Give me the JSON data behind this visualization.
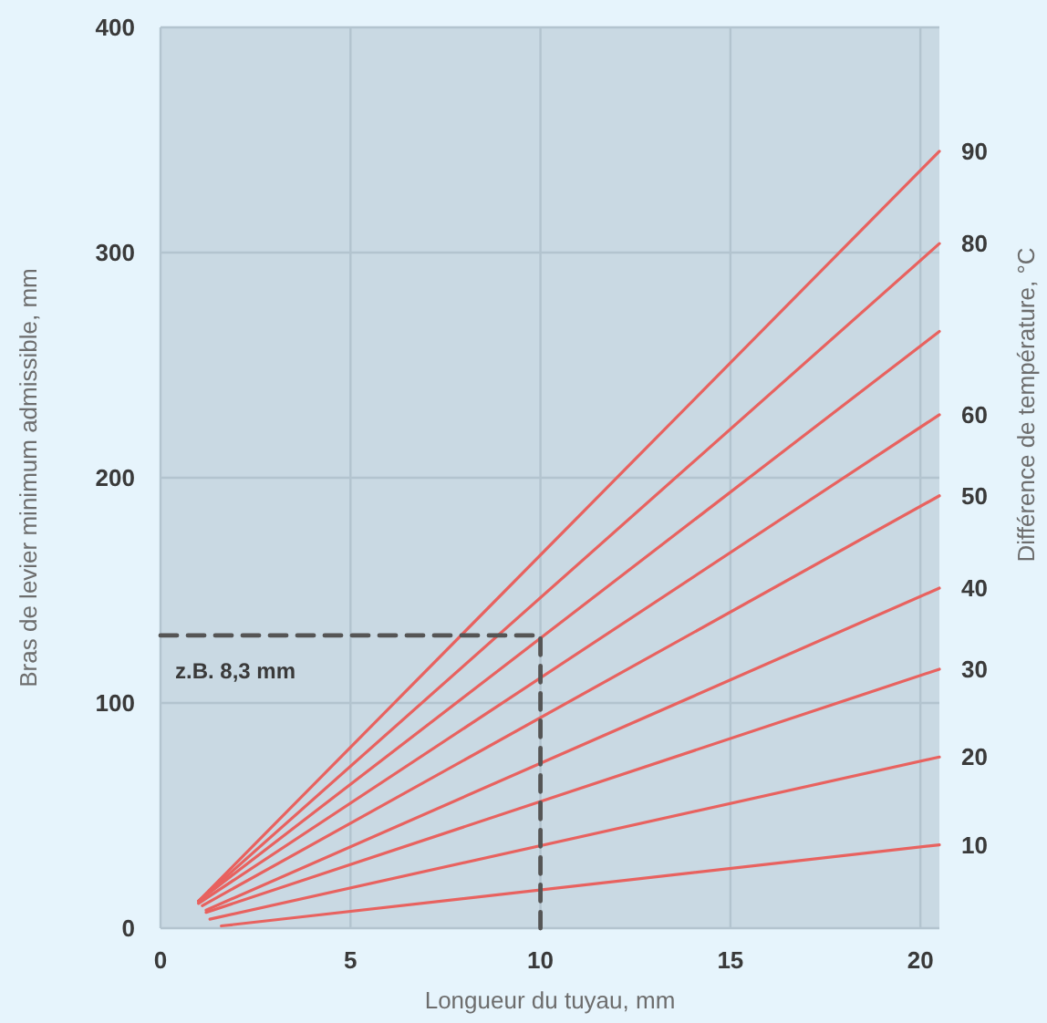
{
  "chart_data": {
    "type": "line",
    "xlabel": "Longueur du tuyau, mm",
    "ylabel": "Bras de levier minimum admissible, mm",
    "y2label": "Différence de température, °C",
    "xlim": [
      0,
      20.5
    ],
    "ylim": [
      0,
      400
    ],
    "xticks": [
      0,
      5,
      10,
      15,
      20
    ],
    "yticks": [
      0,
      100,
      200,
      300,
      400
    ],
    "grid": true,
    "legend": false,
    "marker": "none",
    "annotations": [
      "z.B. 8,3 mm"
    ],
    "series": [
      {
        "name": "90",
        "color": "#e8625f",
        "x": [
          1.0,
          20.5
        ],
        "values": [
          12,
          345
        ]
      },
      {
        "name": "80",
        "color": "#e8625f",
        "x": [
          1.0,
          20.5
        ],
        "values": [
          12,
          304
        ]
      },
      {
        "color": "#e8625f",
        "x": [
          1.0,
          20.5
        ],
        "values": [
          12,
          265
        ]
      },
      {
        "name": "60",
        "color": "#e8625f",
        "x": [
          1.0,
          20.5
        ],
        "values": [
          11,
          228
        ]
      },
      {
        "name": "50",
        "color": "#e8625f",
        "x": [
          1.1,
          20.5
        ],
        "values": [
          10,
          192
        ]
      },
      {
        "name": "40",
        "color": "#e8625f",
        "x": [
          1.2,
          20.5
        ],
        "values": [
          8,
          151
        ]
      },
      {
        "name": "30",
        "color": "#e8625f",
        "x": [
          1.2,
          20.5
        ],
        "values": [
          7,
          115
        ]
      },
      {
        "name": "20",
        "color": "#e8625f",
        "x": [
          1.3,
          20.5
        ],
        "values": [
          4,
          76
        ]
      },
      {
        "name": "10",
        "color": "#e8625f",
        "x": [
          1.6,
          20.5
        ],
        "values": [
          1,
          37
        ]
      },
      {
        "color": "#555555",
        "line_style": "dashed",
        "x": [
          0,
          10,
          10
        ],
        "values": [
          130,
          130,
          0
        ]
      }
    ]
  }
}
